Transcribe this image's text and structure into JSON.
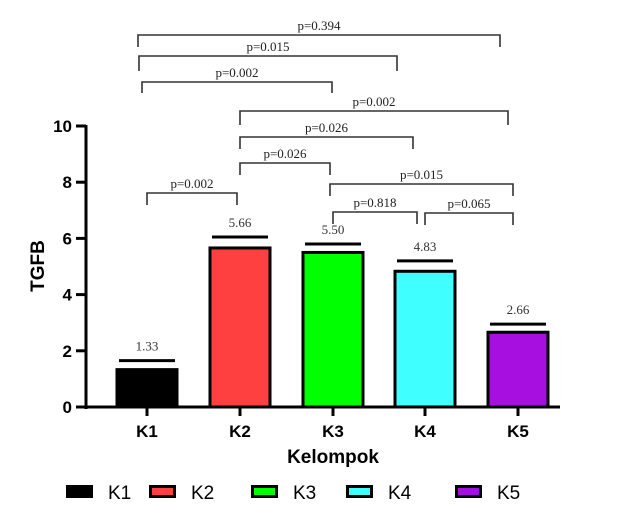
{
  "chart_data": {
    "type": "bar",
    "title": "",
    "xlabel": "Kelompok",
    "ylabel": "TGFB",
    "ylim": [
      0,
      10
    ],
    "yticks": [
      0,
      2,
      4,
      6,
      8,
      10
    ],
    "categories": [
      "K1",
      "K2",
      "K3",
      "K4",
      "K5"
    ],
    "values": [
      1.33,
      5.66,
      5.5,
      4.83,
      2.66
    ],
    "value_labels": [
      "1.33",
      "5.66",
      "5.50",
      "4.83",
      "2.66"
    ],
    "error_caps": [
      1.65,
      6.05,
      5.8,
      5.2,
      2.95
    ],
    "colors": [
      "#000000",
      "#ff4040",
      "#00ff00",
      "#40ffff",
      "#a60fe0"
    ],
    "legend": {
      "placement": "bottom",
      "entries": [
        "K1",
        "K2",
        "K3",
        "K4",
        "K5"
      ]
    },
    "comparisons": [
      {
        "from": "K1",
        "to": "K2",
        "label": "p=0.002"
      },
      {
        "from": "K2",
        "to": "K3",
        "label": "p=0.026"
      },
      {
        "from": "K2",
        "to": "K4",
        "label": "p=0.026"
      },
      {
        "from": "K2",
        "to": "K5",
        "label": "p=0.002"
      },
      {
        "from": "K3",
        "to": "K4",
        "label": "p=0.818"
      },
      {
        "from": "K4",
        "to": "K5",
        "label": "p=0.065"
      },
      {
        "from": "K3",
        "to": "K5",
        "label": "p=0.015"
      },
      {
        "from": "K1",
        "to": "K3",
        "label": "p=0.002"
      },
      {
        "from": "K1",
        "to": "K4",
        "label": "p=0.015"
      },
      {
        "from": "K1",
        "to": "K5",
        "label": "p=0.394"
      }
    ]
  }
}
